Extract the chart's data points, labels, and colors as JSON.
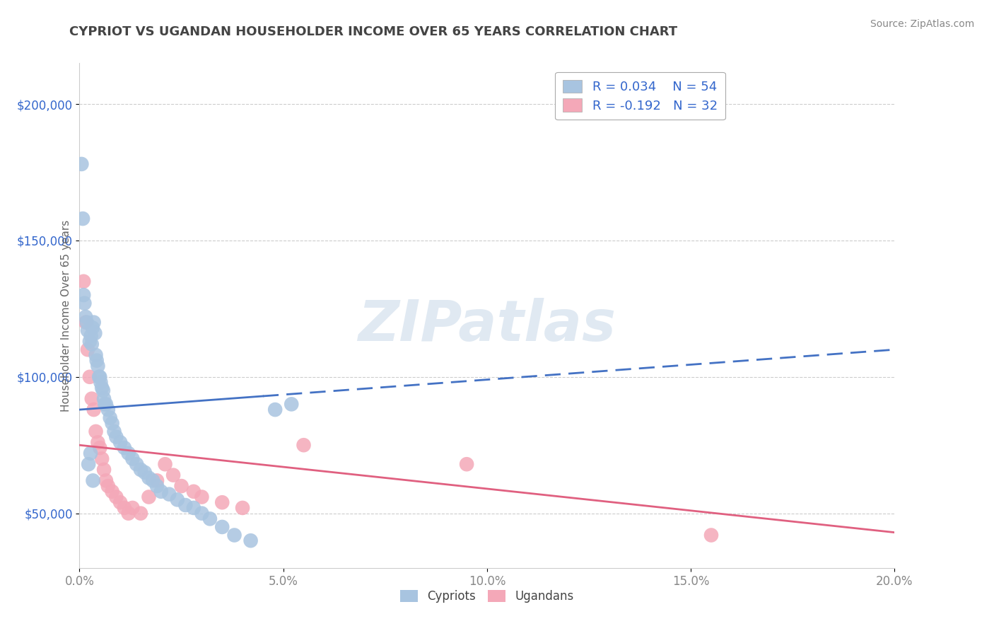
{
  "title": "CYPRIOT VS UGANDAN HOUSEHOLDER INCOME OVER 65 YEARS CORRELATION CHART",
  "source": "Source: ZipAtlas.com",
  "ylabel": "Householder Income Over 65 years",
  "xlabel_ticks": [
    "0.0%",
    "5.0%",
    "10.0%",
    "15.0%",
    "20.0%"
  ],
  "xlabel_vals": [
    0.0,
    5.0,
    10.0,
    15.0,
    20.0
  ],
  "ytick_vals": [
    50000,
    100000,
    150000,
    200000
  ],
  "watermark": "ZIPatlas",
  "cypriot_R": 0.034,
  "cypriot_N": 54,
  "ugandan_R": -0.192,
  "ugandan_N": 32,
  "cypriot_color": "#a8c4e0",
  "ugandan_color": "#f4a8b8",
  "cypriot_line_color": "#4472c4",
  "ugandan_line_color": "#e06080",
  "background_color": "#ffffff",
  "grid_color": "#cccccc",
  "title_color": "#444444",
  "legend_text_color": "#3366cc",
  "cypriot_x": [
    0.05,
    0.08,
    0.1,
    0.12,
    0.15,
    0.18,
    0.2,
    0.25,
    0.28,
    0.3,
    0.32,
    0.35,
    0.38,
    0.4,
    0.42,
    0.45,
    0.48,
    0.5,
    0.52,
    0.55,
    0.58,
    0.6,
    0.62,
    0.65,
    0.7,
    0.75,
    0.8,
    0.85,
    0.9,
    1.0,
    1.1,
    1.2,
    1.3,
    1.4,
    1.5,
    1.6,
    1.7,
    1.8,
    1.9,
    2.0,
    2.2,
    2.4,
    2.6,
    2.8,
    3.0,
    3.2,
    3.5,
    3.8,
    4.2,
    0.22,
    0.27,
    0.33,
    4.8,
    5.2
  ],
  "cypriot_y": [
    178000,
    158000,
    130000,
    127000,
    122000,
    120000,
    117000,
    113000,
    115000,
    112000,
    118000,
    120000,
    116000,
    108000,
    106000,
    104000,
    100000,
    100000,
    98000,
    96000,
    95000,
    92000,
    90000,
    90000,
    88000,
    85000,
    83000,
    80000,
    78000,
    76000,
    74000,
    72000,
    70000,
    68000,
    66000,
    65000,
    63000,
    62000,
    60000,
    58000,
    57000,
    55000,
    53000,
    52000,
    50000,
    48000,
    45000,
    42000,
    40000,
    68000,
    72000,
    62000,
    88000,
    90000
  ],
  "ugandan_x": [
    0.1,
    0.15,
    0.2,
    0.25,
    0.3,
    0.35,
    0.4,
    0.45,
    0.5,
    0.55,
    0.6,
    0.65,
    0.7,
    0.8,
    0.9,
    1.0,
    1.1,
    1.2,
    1.3,
    1.5,
    1.7,
    1.9,
    2.1,
    2.3,
    2.5,
    2.8,
    3.0,
    3.5,
    4.0,
    5.5,
    9.5,
    15.5
  ],
  "ugandan_y": [
    135000,
    120000,
    110000,
    100000,
    92000,
    88000,
    80000,
    76000,
    74000,
    70000,
    66000,
    62000,
    60000,
    58000,
    56000,
    54000,
    52000,
    50000,
    52000,
    50000,
    56000,
    62000,
    68000,
    64000,
    60000,
    58000,
    56000,
    54000,
    52000,
    75000,
    68000,
    42000
  ],
  "xlim": [
    0,
    20
  ],
  "ylim": [
    30000,
    215000
  ],
  "cypriot_line_x0": 0,
  "cypriot_line_y0": 88000,
  "cypriot_line_x1": 20,
  "cypriot_line_y1": 110000,
  "ugandan_line_x0": 0,
  "ugandan_line_y0": 75000,
  "ugandan_line_x1": 20,
  "ugandan_line_y1": 43000
}
